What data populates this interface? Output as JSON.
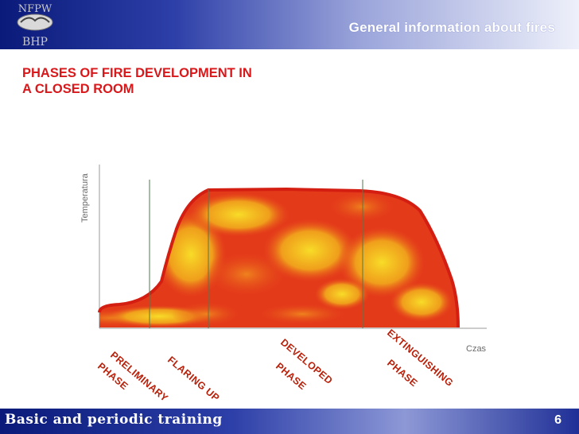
{
  "header": {
    "title": "General information about fires"
  },
  "slide": {
    "title_line1": "PHASES OF FIRE DEVELOPMENT IN",
    "title_line2": "A CLOSED ROOM"
  },
  "diagram": {
    "y_axis_label": "Temperatura",
    "x_axis_label": "Czas",
    "phases": [
      {
        "line1": "PRELIMINARY",
        "line2": "PHASE"
      },
      {
        "line1": "FLARING UP",
        "line2": ""
      },
      {
        "line1": "DEVELOPED",
        "line2": "PHASE"
      },
      {
        "line1": "EXTINGUISHING",
        "line2": "PHASE"
      }
    ]
  },
  "footer": {
    "label": "Basic and periodic training",
    "page": "6"
  },
  "logo": {
    "top_text": "NFPW",
    "bottom_text": "BHP"
  },
  "colors": {
    "title_red": "#d8181a",
    "fire_red": "#e02818",
    "fire_yellow": "#f6d020",
    "bar_blue": "#0a1a7a"
  }
}
